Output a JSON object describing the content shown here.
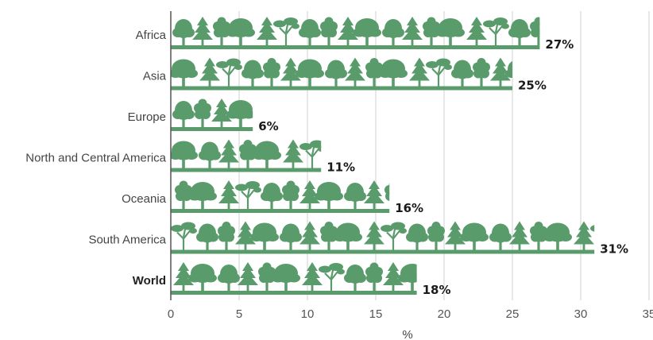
{
  "chart_data": {
    "type": "bar",
    "orientation": "horizontal",
    "categories": [
      "Africa",
      "Asia",
      "Europe",
      "North and Central America",
      "Oceania",
      "South America",
      "World"
    ],
    "values": [
      27,
      25,
      6,
      11,
      16,
      31,
      18
    ],
    "value_labels": [
      "27%",
      "25%",
      "6%",
      "11%",
      "16%",
      "31%",
      "18%"
    ],
    "emphasized_category": "World",
    "title": "",
    "xlabel": "%",
    "ylabel": "",
    "xlim": [
      0,
      35
    ],
    "xticks": [
      0,
      5,
      10,
      15,
      20,
      25,
      30,
      35
    ],
    "grid": "vertical",
    "bar_style": "tree pictograms",
    "colors": {
      "bar": "#5a9b6c",
      "grid": "#d0d0d0",
      "axis": "#555555"
    }
  }
}
